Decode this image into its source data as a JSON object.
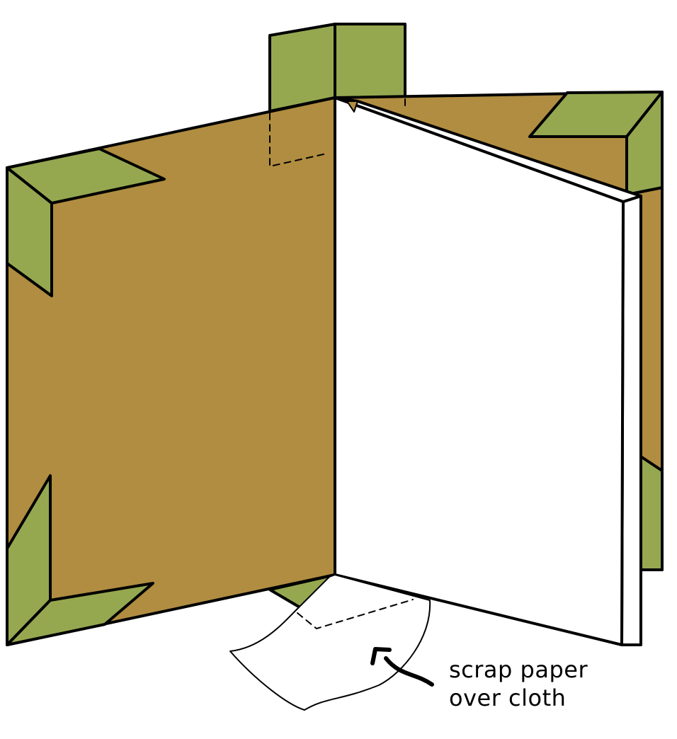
{
  "annotation": {
    "line1": "scrap paper",
    "line2": "over cloth"
  },
  "colors": {
    "board": "#b08d40",
    "corner_cloth": "#95a850",
    "page": "#ffffff",
    "outline": "#000000"
  },
  "icons": {
    "pointer": "curved-arrow-icon"
  }
}
